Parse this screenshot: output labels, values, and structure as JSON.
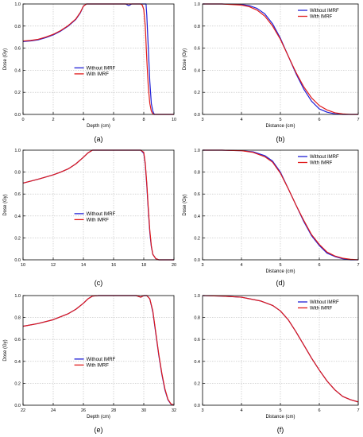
{
  "colors": {
    "without": "#1f1fd6",
    "with": "#e01a1a",
    "grid": "#bdbdbd",
    "axis": "#000000"
  },
  "chart_data": [
    {
      "type": "line",
      "caption": "(a)",
      "xlabel": "Depth (cm)",
      "ylabel": "Dose (Gy)",
      "xlim": [
        0,
        10
      ],
      "ylim": [
        0,
        1.0
      ],
      "xticks": [
        0,
        2,
        4,
        6,
        8,
        10
      ],
      "yticks": [
        0.0,
        0.2,
        0.4,
        0.6,
        0.8,
        1.0
      ],
      "grid": true,
      "legend_position": "center",
      "series": [
        {
          "name": "Without IMRF",
          "color_key": "without",
          "x": [
            0,
            0.5,
            1,
            1.5,
            2,
            2.5,
            3,
            3.5,
            3.8,
            4.0,
            4.2,
            4.5,
            5,
            6,
            6.8,
            7,
            7.2,
            7.5,
            7.7,
            8.0,
            8.1,
            8.15,
            8.2,
            8.3,
            8.4,
            8.5,
            8.6,
            8.7,
            9,
            10
          ],
          "y": [
            0.66,
            0.665,
            0.675,
            0.695,
            0.72,
            0.755,
            0.8,
            0.86,
            0.92,
            0.98,
            1.0,
            1.0,
            1.0,
            1.0,
            1.0,
            0.985,
            1.0,
            1.0,
            1.0,
            1.0,
            1.0,
            1.0,
            0.9,
            0.6,
            0.3,
            0.1,
            0.03,
            0.0,
            0.0,
            0.0
          ]
        },
        {
          "name": "With IMRF",
          "color_key": "with",
          "x": [
            0,
            0.5,
            1,
            1.5,
            2,
            2.5,
            3,
            3.5,
            3.8,
            4.0,
            4.2,
            4.5,
            5,
            6,
            7,
            7.5,
            7.8,
            7.9,
            8.0,
            8.1,
            8.2,
            8.3,
            8.4,
            8.5,
            8.6,
            8.7,
            9,
            10
          ],
          "y": [
            0.665,
            0.67,
            0.68,
            0.7,
            0.725,
            0.76,
            0.805,
            0.865,
            0.925,
            0.98,
            1.0,
            1.0,
            1.0,
            1.0,
            1.0,
            1.0,
            1.0,
            0.99,
            0.95,
            0.8,
            0.5,
            0.25,
            0.1,
            0.03,
            0.005,
            0.0,
            0.0,
            0.0
          ]
        }
      ]
    },
    {
      "type": "line",
      "caption": "(b)",
      "xlabel": "Distance (cm)",
      "ylabel": "Dose (Gy)",
      "xlim": [
        3,
        7
      ],
      "ylim": [
        0,
        1.0
      ],
      "xticks": [
        3,
        4,
        5,
        6,
        7
      ],
      "yticks": [
        0.0,
        0.2,
        0.4,
        0.6,
        0.8,
        1.0
      ],
      "grid": true,
      "legend_position": "top-right",
      "series": [
        {
          "name": "Without IMRF",
          "color_key": "without",
          "x": [
            3,
            3.5,
            4,
            4.2,
            4.4,
            4.6,
            4.8,
            5.0,
            5.2,
            5.4,
            5.6,
            5.8,
            6.0,
            6.2,
            6.4,
            6.6,
            7
          ],
          "y": [
            1.0,
            1.0,
            0.995,
            0.985,
            0.96,
            0.91,
            0.82,
            0.69,
            0.53,
            0.37,
            0.23,
            0.12,
            0.05,
            0.02,
            0.005,
            0.0,
            0.0
          ]
        },
        {
          "name": "With IMRF",
          "color_key": "with",
          "x": [
            3,
            3.5,
            4,
            4.2,
            4.4,
            4.6,
            4.8,
            5.0,
            5.2,
            5.4,
            5.6,
            5.8,
            6.0,
            6.2,
            6.4,
            6.6,
            6.8,
            7
          ],
          "y": [
            1.0,
            1.0,
            0.99,
            0.975,
            0.945,
            0.89,
            0.8,
            0.68,
            0.53,
            0.38,
            0.25,
            0.15,
            0.08,
            0.04,
            0.015,
            0.005,
            0.0,
            0.0
          ]
        }
      ]
    },
    {
      "type": "line",
      "caption": "(c)",
      "xlabel": "",
      "ylabel": "Dose (Gy)",
      "xlim": [
        10,
        20
      ],
      "ylim": [
        0,
        1.0
      ],
      "xticks": [
        10,
        12,
        14,
        16,
        18,
        20
      ],
      "yticks": [
        0.0,
        0.2,
        0.4,
        0.6,
        0.8,
        1.0
      ],
      "grid": true,
      "legend_position": "center",
      "series": [
        {
          "name": "Without IMRF",
          "color_key": "without",
          "x": [
            10,
            11,
            12,
            12.5,
            13,
            13.5,
            14,
            14.3,
            14.6,
            15,
            16,
            17,
            17.5,
            17.8,
            18.0,
            18.1,
            18.2,
            18.3,
            18.4,
            18.5,
            18.6,
            18.8,
            19,
            20
          ],
          "y": [
            0.7,
            0.735,
            0.775,
            0.8,
            0.83,
            0.875,
            0.935,
            0.975,
            1.0,
            1.0,
            1.0,
            1.0,
            1.0,
            1.0,
            0.97,
            0.87,
            0.68,
            0.45,
            0.25,
            0.12,
            0.05,
            0.01,
            0.0,
            0.0
          ]
        },
        {
          "name": "With IMRF",
          "color_key": "with",
          "x": [
            10,
            11,
            12,
            12.5,
            13,
            13.5,
            14,
            14.3,
            14.6,
            15,
            16,
            17,
            17.5,
            17.8,
            18.0,
            18.1,
            18.2,
            18.3,
            18.4,
            18.5,
            18.6,
            18.8,
            19,
            20
          ],
          "y": [
            0.7,
            0.735,
            0.775,
            0.8,
            0.83,
            0.875,
            0.935,
            0.975,
            1.0,
            1.0,
            1.0,
            1.0,
            1.0,
            1.0,
            0.98,
            0.88,
            0.7,
            0.47,
            0.27,
            0.13,
            0.05,
            0.01,
            0.0,
            0.0
          ]
        }
      ]
    },
    {
      "type": "line",
      "caption": "(d)",
      "xlabel": "Distance (cm)",
      "ylabel": "Dose (Gy)",
      "xlim": [
        3,
        7
      ],
      "ylim": [
        0,
        1.0
      ],
      "xticks": [
        3,
        4,
        5,
        6,
        7
      ],
      "yticks": [
        0.0,
        0.2,
        0.4,
        0.6,
        0.8,
        1.0
      ],
      "grid": true,
      "legend_position": "top-right",
      "series": [
        {
          "name": "Without IMRF",
          "color_key": "without",
          "x": [
            3,
            3.5,
            4,
            4.3,
            4.6,
            4.8,
            5.0,
            5.2,
            5.4,
            5.6,
            5.8,
            6.0,
            6.2,
            6.4,
            6.6,
            6.8,
            7
          ],
          "y": [
            1.0,
            1.0,
            0.995,
            0.985,
            0.95,
            0.9,
            0.8,
            0.65,
            0.5,
            0.35,
            0.22,
            0.13,
            0.06,
            0.03,
            0.01,
            0.0,
            0.0
          ]
        },
        {
          "name": "With IMRF",
          "color_key": "with",
          "x": [
            3,
            3.5,
            4,
            4.3,
            4.6,
            4.8,
            5.0,
            5.2,
            5.4,
            5.6,
            5.8,
            6.0,
            6.2,
            6.4,
            6.6,
            6.8,
            7
          ],
          "y": [
            1.0,
            1.0,
            0.995,
            0.98,
            0.94,
            0.89,
            0.79,
            0.65,
            0.5,
            0.36,
            0.23,
            0.14,
            0.07,
            0.035,
            0.015,
            0.005,
            0.0
          ]
        }
      ]
    },
    {
      "type": "line",
      "caption": "(e)",
      "xlabel": "Depth (cm)",
      "ylabel": "Dose (Gy)",
      "xlim": [
        22,
        32
      ],
      "ylim": [
        0,
        1.0
      ],
      "xticks": [
        22,
        24,
        26,
        28,
        30,
        32
      ],
      "yticks": [
        0.0,
        0.2,
        0.4,
        0.6,
        0.8,
        1.0
      ],
      "grid": true,
      "legend_position": "center",
      "series": [
        {
          "name": "Without IMRF",
          "color_key": "without",
          "x": [
            22,
            23,
            24,
            25,
            25.5,
            26,
            26.3,
            26.6,
            27,
            28,
            29,
            29.5,
            29.8,
            30.0,
            30.2,
            30.4,
            30.6,
            30.8,
            31.0,
            31.2,
            31.4,
            31.6,
            31.8,
            32
          ],
          "y": [
            0.72,
            0.745,
            0.78,
            0.835,
            0.875,
            0.93,
            0.97,
            0.995,
            1.0,
            1.0,
            1.0,
            1.0,
            0.985,
            1.0,
            1.0,
            0.97,
            0.85,
            0.65,
            0.45,
            0.28,
            0.14,
            0.05,
            0.01,
            0.0
          ]
        },
        {
          "name": "With IMRF",
          "color_key": "with",
          "x": [
            22,
            23,
            24,
            25,
            25.5,
            26,
            26.3,
            26.6,
            27,
            28,
            29,
            29.5,
            29.8,
            30.0,
            30.2,
            30.4,
            30.6,
            30.8,
            31.0,
            31.2,
            31.4,
            31.6,
            31.8,
            32
          ],
          "y": [
            0.72,
            0.745,
            0.78,
            0.835,
            0.875,
            0.93,
            0.97,
            0.995,
            1.0,
            1.0,
            1.0,
            1.0,
            0.985,
            1.0,
            1.0,
            0.97,
            0.86,
            0.66,
            0.46,
            0.29,
            0.15,
            0.055,
            0.012,
            0.0
          ]
        }
      ]
    },
    {
      "type": "line",
      "caption": "(f)",
      "xlabel": "Distance (cm)",
      "ylabel": "",
      "xlim": [
        3,
        7
      ],
      "ylim": [
        0,
        1.0
      ],
      "xticks": [
        3,
        4,
        5,
        6,
        7
      ],
      "yticks": [
        0.0,
        0.2,
        0.4,
        0.6,
        0.8,
        1.0
      ],
      "grid": true,
      "legend_position": "top-right",
      "series": [
        {
          "name": "Without IMRF",
          "color_key": "without",
          "x": [
            3,
            3.5,
            4,
            4.5,
            4.8,
            5.0,
            5.2,
            5.4,
            5.6,
            5.8,
            6.0,
            6.2,
            6.4,
            6.6,
            6.8,
            7
          ],
          "y": [
            1.0,
            0.995,
            0.985,
            0.95,
            0.91,
            0.86,
            0.78,
            0.67,
            0.55,
            0.43,
            0.32,
            0.22,
            0.14,
            0.08,
            0.05,
            0.03
          ]
        },
        {
          "name": "With IMRF",
          "color_key": "with",
          "x": [
            3,
            3.5,
            4,
            4.5,
            4.8,
            5.0,
            5.2,
            5.4,
            5.6,
            5.8,
            6.0,
            6.2,
            6.4,
            6.6,
            6.8,
            7
          ],
          "y": [
            1.0,
            0.995,
            0.985,
            0.95,
            0.91,
            0.86,
            0.78,
            0.67,
            0.55,
            0.43,
            0.32,
            0.22,
            0.14,
            0.08,
            0.05,
            0.03
          ]
        }
      ]
    }
  ]
}
